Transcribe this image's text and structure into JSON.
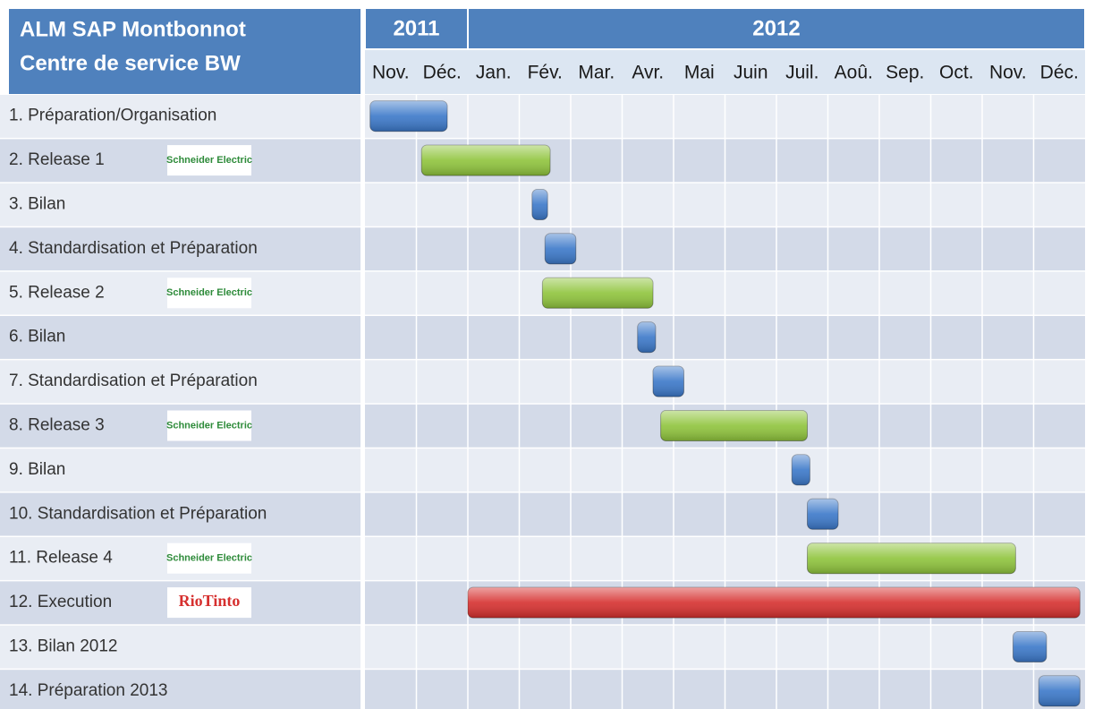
{
  "chart_data": {
    "type": "gantt",
    "title": "ALM SAP Montbonnot",
    "subtitle": "Centre de service BW",
    "year_groups": [
      {
        "label": "2011",
        "start": 0,
        "end": 2
      },
      {
        "label": "2012",
        "start": 2,
        "end": 14
      }
    ],
    "categories": [
      "Nov.",
      "Déc.",
      "Jan.",
      "Fév.",
      "Mar.",
      "Avr.",
      "Mai",
      "Juin",
      "Juil.",
      "Aoû.",
      "Sep.",
      "Oct.",
      "Nov.",
      "Déc."
    ],
    "xlim": [
      0,
      14
    ],
    "grid": true,
    "tasks": [
      {
        "name": "1. Préparation/Organisation",
        "start": 0.1,
        "end": 1.6,
        "color": "#3b78c9"
      },
      {
        "name": "2. Release 1",
        "start": 1.1,
        "end": 3.6,
        "color": "#8fc43c",
        "logo": "Schneider Electric"
      },
      {
        "name": "3. Bilan",
        "start": 3.25,
        "end": 3.55,
        "color": "#3b78c9"
      },
      {
        "name": "4. Standardisation et Préparation",
        "start": 3.5,
        "end": 4.1,
        "color": "#3b78c9"
      },
      {
        "name": "5. Release 2",
        "start": 3.45,
        "end": 5.6,
        "color": "#8fc43c",
        "logo": "Schneider Electric"
      },
      {
        "name": "6. Bilan",
        "start": 5.3,
        "end": 5.65,
        "color": "#3b78c9"
      },
      {
        "name": "7. Standardisation et Préparation",
        "start": 5.6,
        "end": 6.2,
        "color": "#3b78c9"
      },
      {
        "name": "8. Release 3",
        "start": 5.75,
        "end": 8.6,
        "color": "#8fc43c",
        "logo": "Schneider Electric"
      },
      {
        "name": "9. Bilan",
        "start": 8.3,
        "end": 8.65,
        "color": "#3b78c9"
      },
      {
        "name": "10. Standardisation et Préparation",
        "start": 8.6,
        "end": 9.2,
        "color": "#3b78c9"
      },
      {
        "name": "11. Release 4",
        "start": 8.6,
        "end": 12.65,
        "color": "#8fc43c",
        "logo": "Schneider Electric"
      },
      {
        "name": "12. Execution",
        "start": 2.0,
        "end": 13.9,
        "color": "#d6302f",
        "logo": "RioTinto"
      },
      {
        "name": "13. Bilan 2012",
        "start": 12.6,
        "end": 13.25,
        "color": "#3b78c9"
      },
      {
        "name": "14. Préparation 2013",
        "start": 13.1,
        "end": 13.9,
        "color": "#3b78c9"
      }
    ]
  }
}
